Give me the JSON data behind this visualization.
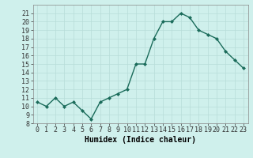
{
  "x": [
    0,
    1,
    2,
    3,
    4,
    5,
    6,
    7,
    8,
    9,
    10,
    11,
    12,
    13,
    14,
    15,
    16,
    17,
    18,
    19,
    20,
    21,
    22,
    23
  ],
  "y": [
    10.5,
    10.0,
    11.0,
    10.0,
    10.5,
    9.5,
    8.5,
    10.5,
    11.0,
    11.5,
    12.0,
    15.0,
    15.0,
    18.0,
    20.0,
    20.0,
    21.0,
    20.5,
    19.0,
    18.5,
    18.0,
    16.5,
    15.5,
    14.5
  ],
  "line_color": "#1a6b5a",
  "bg_color": "#cff0ec",
  "grid_color": "#b8ddd8",
  "xlabel": "Humidex (Indice chaleur)",
  "ylim": [
    8,
    22
  ],
  "xlim": [
    -0.5,
    23.5
  ],
  "yticks": [
    8,
    9,
    10,
    11,
    12,
    13,
    14,
    15,
    16,
    17,
    18,
    19,
    20,
    21
  ],
  "xtick_labels": [
    "0",
    "1",
    "2",
    "3",
    "4",
    "5",
    "6",
    "7",
    "8",
    "9",
    "10",
    "11",
    "12",
    "13",
    "14",
    "15",
    "16",
    "17",
    "18",
    "19",
    "20",
    "21",
    "22",
    "23"
  ],
  "marker": "D",
  "marker_size": 2.0,
  "line_width": 1.0,
  "tick_fontsize": 6.0,
  "xlabel_fontsize": 7.0
}
